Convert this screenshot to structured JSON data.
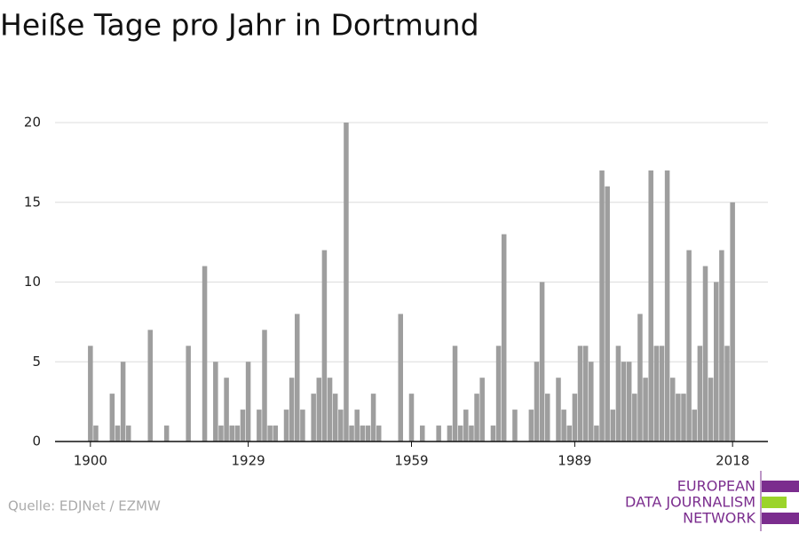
{
  "chart_data": {
    "type": "bar",
    "title": "Heiße Tage pro Jahr in Dortmund",
    "x": [
      1900,
      1901,
      1902,
      1903,
      1904,
      1905,
      1906,
      1907,
      1908,
      1909,
      1910,
      1911,
      1912,
      1913,
      1914,
      1915,
      1916,
      1917,
      1918,
      1919,
      1920,
      1921,
      1922,
      1923,
      1924,
      1925,
      1926,
      1927,
      1928,
      1929,
      1930,
      1931,
      1932,
      1933,
      1934,
      1935,
      1936,
      1937,
      1938,
      1939,
      1940,
      1941,
      1942,
      1943,
      1944,
      1945,
      1946,
      1947,
      1948,
      1949,
      1950,
      1951,
      1952,
      1953,
      1954,
      1955,
      1956,
      1957,
      1958,
      1959,
      1960,
      1961,
      1962,
      1963,
      1964,
      1965,
      1966,
      1967,
      1968,
      1969,
      1970,
      1971,
      1972,
      1973,
      1974,
      1975,
      1976,
      1977,
      1978,
      1979,
      1980,
      1981,
      1982,
      1983,
      1984,
      1985,
      1986,
      1987,
      1988,
      1989,
      1990,
      1991,
      1992,
      1993,
      1994,
      1995,
      1996,
      1997,
      1998,
      1999,
      2000,
      2001,
      2002,
      2003,
      2004,
      2005,
      2006,
      2007,
      2008,
      2009,
      2010,
      2011,
      2012,
      2013,
      2014,
      2015,
      2016,
      2017,
      2018
    ],
    "values": [
      6,
      1,
      0,
      0,
      3,
      1,
      5,
      1,
      0,
      0,
      0,
      7,
      0,
      0,
      1,
      0,
      0,
      0,
      6,
      0,
      0,
      11,
      0,
      5,
      1,
      4,
      1,
      1,
      2,
      5,
      0,
      2,
      7,
      1,
      1,
      0,
      2,
      4,
      8,
      2,
      0,
      3,
      4,
      12,
      4,
      3,
      2,
      20,
      1,
      2,
      1,
      1,
      3,
      1,
      0,
      0,
      0,
      8,
      0,
      3,
      0,
      1,
      0,
      0,
      1,
      0,
      1,
      6,
      1,
      2,
      1,
      3,
      4,
      0,
      1,
      6,
      13,
      0,
      2,
      0,
      0,
      2,
      5,
      10,
      3,
      0,
      4,
      2,
      1,
      3,
      6,
      6,
      5,
      1,
      17,
      16,
      2,
      6,
      5,
      5,
      3,
      8,
      4,
      17,
      6,
      6,
      17,
      4,
      3,
      3,
      12,
      2,
      6,
      11,
      4,
      10,
      12,
      6,
      15
    ],
    "color": "#9e9e9e",
    "xlim": [
      1893.5,
      2024.5
    ],
    "xticks": [
      1900,
      1929,
      1959,
      1989,
      2018
    ],
    "ylim": [
      0,
      20
    ],
    "yticks": [
      0,
      5,
      10,
      15,
      20
    ],
    "grid": true,
    "source": "Quelle: EDJNet / EZMW",
    "logo": [
      "EUROPEAN",
      "DATA JOURNALISM",
      "NETWORK"
    ]
  }
}
